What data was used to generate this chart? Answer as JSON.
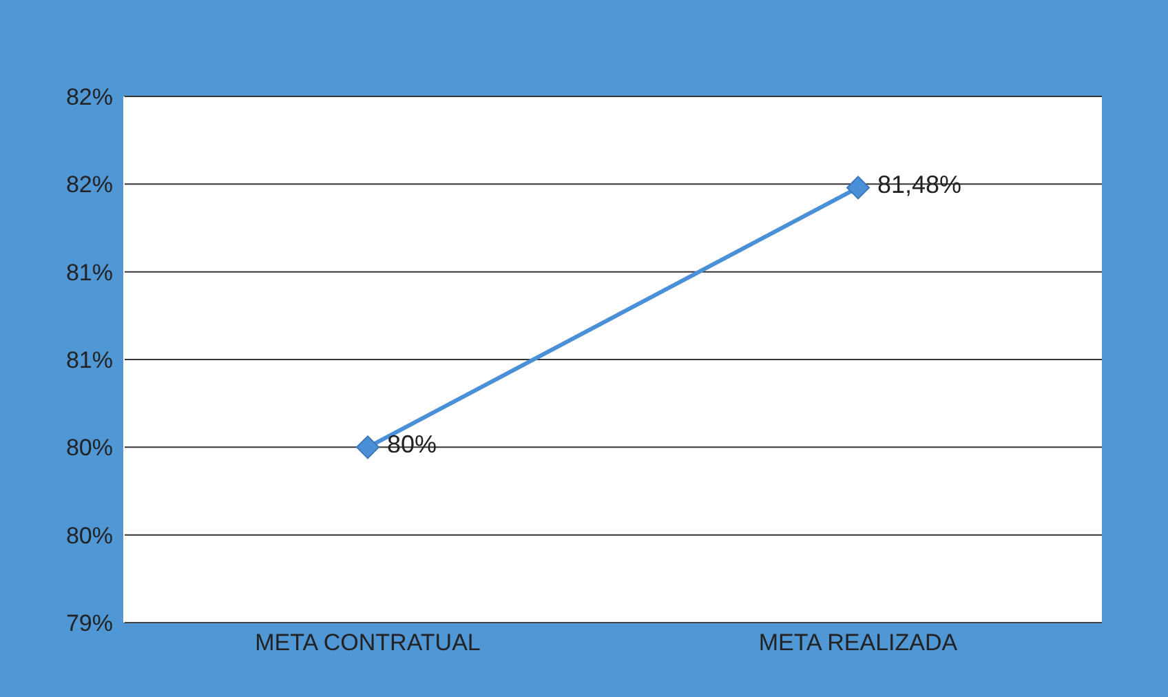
{
  "chart_data": {
    "type": "line",
    "categories": [
      "META CONTRATUAL",
      "META REALIZADA"
    ],
    "series": [
      {
        "color": "#4a90d9",
        "values": [
          80,
          81.48
        ],
        "value_labels": [
          "80%",
          "81,48%"
        ]
      }
    ],
    "ylim": [
      79,
      82
    ],
    "yticks": [
      {
        "value": 79,
        "label": "79%"
      },
      {
        "value": 79.5,
        "label": "80%"
      },
      {
        "value": 80,
        "label": "80%"
      },
      {
        "value": 80.5,
        "label": "81%"
      },
      {
        "value": 81,
        "label": "81%"
      },
      {
        "value": 81.5,
        "label": "82%"
      },
      {
        "value": 82,
        "label": "82%"
      }
    ],
    "grid": "y",
    "marker": "diamond",
    "line_style": "solid"
  }
}
